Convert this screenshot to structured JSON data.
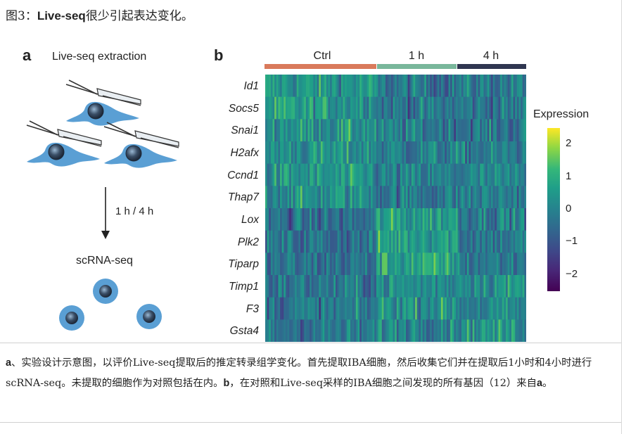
{
  "figure": {
    "title_prefix": "图3：",
    "title_bold": "Live-seq",
    "title_rest": "很少引起表达变化。"
  },
  "panel_a": {
    "letter": "a",
    "title": "Live-seq extraction",
    "arrow_label": "1 h / 4 h",
    "bottom_label": "scRNA-seq"
  },
  "panel_b": {
    "letter": "b",
    "legend_title": "Expression",
    "colors": {
      "ctrl": "#d97a5b",
      "h1": "#79b79b",
      "h4": "#2f3650"
    }
  },
  "chart_data": {
    "type": "heatmap",
    "groups": [
      {
        "name": "Ctrl",
        "cells": 60
      },
      {
        "name": "1 h",
        "cells": 44
      },
      {
        "name": "4 h",
        "cells": 37
      }
    ],
    "genes": [
      "Id1",
      "Socs5",
      "Snai1",
      "H2afx",
      "Ccnd1",
      "Thap7",
      "Lox",
      "Plk2",
      "Tiparp",
      "Timp1",
      "F3",
      "Gsta4"
    ],
    "colorbar": {
      "label": "Expression",
      "min": -2.5,
      "max": 2.5,
      "ticks": [
        2,
        1,
        0,
        -1,
        -2
      ],
      "tick_labels": [
        "2",
        "1",
        "0",
        "−1",
        "−2"
      ]
    },
    "mean_expression_by_group": {
      "Id1": [
        0.4,
        -0.3,
        -0.2
      ],
      "Socs5": [
        0.5,
        -0.3,
        -0.3
      ],
      "Snai1": [
        0.4,
        -0.2,
        -0.3
      ],
      "H2afx": [
        0.3,
        -0.1,
        -0.2
      ],
      "Ccnd1": [
        0.3,
        -0.2,
        -0.1
      ],
      "Thap7": [
        0.3,
        -0.2,
        -0.1
      ],
      "Lox": [
        -0.5,
        0.6,
        0.0
      ],
      "Plk2": [
        -0.4,
        0.7,
        -0.2
      ],
      "Tiparp": [
        -0.4,
        0.7,
        -0.2
      ],
      "Timp1": [
        -0.3,
        0.2,
        0.4
      ],
      "F3": [
        -0.3,
        0.4,
        0.0
      ],
      "Gsta4": [
        -0.3,
        0.2,
        0.4
      ]
    }
  },
  "caption": {
    "a_letter": "a",
    "part1": "、实验设计示意图，以评价Live-seq提取后的推定转录组学变化。首先提取IBA细胞，然后收集它们并在提取后1小时和4小时进行scRNA-seq。未提取的细胞作为对照包括在内。",
    "b_letter": "b",
    "part2": "，在对照和Live-seq采样的IBA细胞之间发现的所有基因（12）来自",
    "a_letter2": "a",
    "end": "。"
  }
}
